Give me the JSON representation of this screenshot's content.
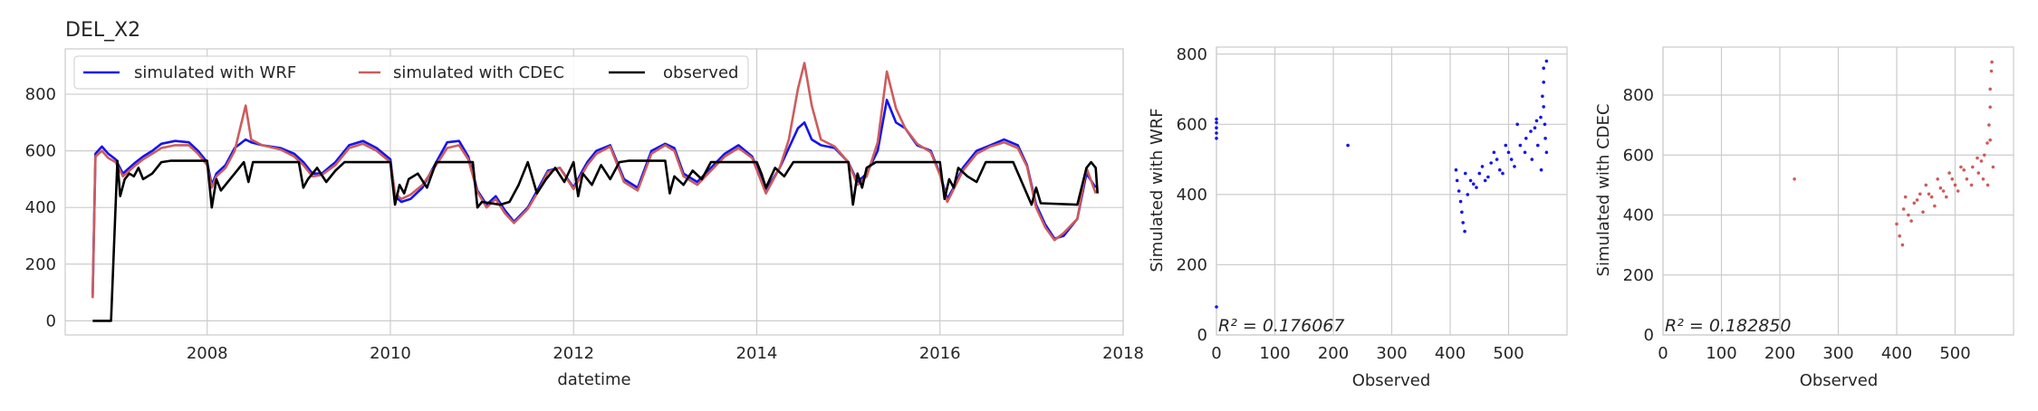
{
  "colors": {
    "wrf": "#1414f0",
    "cdec": "#cd5c5c",
    "observed": "#000000",
    "grid": "#cccccc",
    "spine": "#cccccc"
  },
  "panels": {
    "timeseries": {
      "title": "DEL_X2",
      "xlabel": "datetime",
      "ylabel": ""
    },
    "scatter_wrf": {
      "xlabel": "Observed",
      "ylabel": "Simulated with WRF",
      "r2_text": "R² = 0.176067"
    },
    "scatter_cdec": {
      "xlabel": "Observed",
      "ylabel": "Simulated with CDEC",
      "r2_text": "R² = 0.182850"
    }
  },
  "legend": [
    "simulated with WRF",
    "simulated with CDEC",
    "observed"
  ],
  "chart_data": [
    {
      "type": "line",
      "title": "DEL_X2",
      "xlabel": "datetime",
      "ylabel": "",
      "xlim": [
        2006.45,
        2018.0
      ],
      "ylim": [
        -50,
        960
      ],
      "xticks": [
        2008,
        2010,
        2012,
        2014,
        2016,
        2018
      ],
      "yticks": [
        0,
        200,
        400,
        600,
        800
      ],
      "grid": true,
      "legend_position": "top-left",
      "series": [
        {
          "name": "simulated with WRF",
          "color": "#1414f0",
          "x": [
            2006.75,
            2006.78,
            2006.85,
            2006.92,
            2007.0,
            2007.08,
            2007.15,
            2007.22,
            2007.3,
            2007.4,
            2007.5,
            2007.65,
            2007.8,
            2007.9,
            2008.0,
            2008.05,
            2008.1,
            2008.2,
            2008.3,
            2008.42,
            2008.48,
            2008.6,
            2008.8,
            2008.95,
            2009.05,
            2009.15,
            2009.25,
            2009.4,
            2009.55,
            2009.7,
            2009.85,
            2010.0,
            2010.05,
            2010.12,
            2010.22,
            2010.35,
            2010.5,
            2010.62,
            2010.75,
            2010.85,
            2010.95,
            2011.05,
            2011.15,
            2011.25,
            2011.35,
            2011.5,
            2011.62,
            2011.72,
            2011.85,
            2012.0,
            2012.08,
            2012.15,
            2012.25,
            2012.4,
            2012.55,
            2012.7,
            2012.85,
            2013.0,
            2013.1,
            2013.2,
            2013.35,
            2013.5,
            2013.65,
            2013.8,
            2013.95,
            2014.1,
            2014.25,
            2014.35,
            2014.45,
            2014.52,
            2014.6,
            2014.7,
            2014.85,
            2015.0,
            2015.1,
            2015.2,
            2015.32,
            2015.42,
            2015.52,
            2015.62,
            2015.75,
            2015.9,
            2016.0,
            2016.08,
            2016.15,
            2016.25,
            2016.4,
            2016.55,
            2016.7,
            2016.85,
            2016.95,
            2017.05,
            2017.15,
            2017.25,
            2017.35,
            2017.5,
            2017.6,
            2017.7
          ],
          "y": [
            90,
            590,
            615,
            590,
            570,
            520,
            540,
            560,
            580,
            600,
            625,
            635,
            630,
            600,
            560,
            480,
            520,
            550,
            610,
            640,
            630,
            620,
            610,
            590,
            560,
            520,
            520,
            560,
            620,
            635,
            610,
            570,
            440,
            420,
            430,
            470,
            560,
            630,
            635,
            580,
            460,
            410,
            440,
            390,
            350,
            400,
            470,
            530,
            540,
            470,
            520,
            560,
            600,
            620,
            500,
            470,
            600,
            625,
            610,
            520,
            490,
            540,
            590,
            620,
            580,
            460,
            540,
            610,
            680,
            700,
            640,
            620,
            610,
            560,
            490,
            520,
            600,
            780,
            700,
            680,
            620,
            600,
            520,
            430,
            470,
            540,
            600,
            620,
            640,
            620,
            550,
            410,
            340,
            290,
            300,
            360,
            520,
            470
          ]
        },
        {
          "name": "simulated with CDEC",
          "color": "#cd5c5c",
          "x": [
            2006.75,
            2006.78,
            2006.85,
            2006.92,
            2007.0,
            2007.08,
            2007.15,
            2007.22,
            2007.3,
            2007.4,
            2007.5,
            2007.65,
            2007.8,
            2007.9,
            2008.0,
            2008.05,
            2008.1,
            2008.2,
            2008.3,
            2008.42,
            2008.48,
            2008.6,
            2008.8,
            2008.95,
            2009.05,
            2009.15,
            2009.25,
            2009.4,
            2009.55,
            2009.7,
            2009.85,
            2010.0,
            2010.05,
            2010.12,
            2010.22,
            2010.35,
            2010.5,
            2010.62,
            2010.75,
            2010.85,
            2010.95,
            2011.05,
            2011.15,
            2011.25,
            2011.35,
            2011.5,
            2011.62,
            2011.72,
            2011.85,
            2012.0,
            2012.08,
            2012.15,
            2012.25,
            2012.4,
            2012.55,
            2012.7,
            2012.85,
            2013.0,
            2013.1,
            2013.2,
            2013.35,
            2013.5,
            2013.65,
            2013.8,
            2013.95,
            2014.1,
            2014.25,
            2014.35,
            2014.45,
            2014.52,
            2014.6,
            2014.7,
            2014.85,
            2015.0,
            2015.1,
            2015.2,
            2015.32,
            2015.42,
            2015.52,
            2015.62,
            2015.75,
            2015.9,
            2016.0,
            2016.08,
            2016.15,
            2016.25,
            2016.4,
            2016.55,
            2016.7,
            2016.85,
            2016.95,
            2017.05,
            2017.15,
            2017.25,
            2017.35,
            2017.5,
            2017.6,
            2017.7
          ],
          "y": [
            80,
            580,
            600,
            575,
            560,
            510,
            530,
            550,
            570,
            590,
            610,
            620,
            620,
            590,
            550,
            470,
            510,
            540,
            600,
            760,
            640,
            620,
            605,
            580,
            550,
            510,
            515,
            550,
            610,
            625,
            600,
            560,
            450,
            430,
            445,
            480,
            550,
            610,
            620,
            570,
            455,
            400,
            430,
            380,
            345,
            395,
            460,
            525,
            540,
            465,
            510,
            550,
            590,
            615,
            490,
            460,
            590,
            620,
            600,
            510,
            480,
            530,
            580,
            610,
            575,
            450,
            540,
            640,
            820,
            910,
            760,
            640,
            615,
            560,
            480,
            510,
            630,
            880,
            750,
            680,
            625,
            595,
            515,
            420,
            465,
            530,
            590,
            615,
            630,
            610,
            545,
            400,
            330,
            285,
            310,
            360,
            540,
            450
          ]
        },
        {
          "name": "observed",
          "color": "#000000",
          "x": [
            2006.75,
            2006.95,
            2007.02,
            2007.05,
            2007.1,
            2007.15,
            2007.2,
            2007.25,
            2007.3,
            2007.4,
            2007.5,
            2007.6,
            2008.0,
            2008.05,
            2008.1,
            2008.15,
            2008.3,
            2008.4,
            2008.45,
            2008.5,
            2009.0,
            2009.05,
            2009.1,
            2009.2,
            2009.3,
            2009.4,
            2009.5,
            2010.0,
            2010.05,
            2010.1,
            2010.15,
            2010.2,
            2010.3,
            2010.4,
            2010.5,
            2010.9,
            2010.95,
            2011.0,
            2011.2,
            2011.3,
            2011.4,
            2011.5,
            2011.6,
            2011.7,
            2011.8,
            2011.9,
            2012.0,
            2012.05,
            2012.1,
            2012.2,
            2012.3,
            2012.4,
            2012.5,
            2012.6,
            2013.0,
            2013.05,
            2013.1,
            2013.2,
            2013.3,
            2013.4,
            2013.5,
            2014.0,
            2014.05,
            2014.1,
            2014.2,
            2014.3,
            2014.4,
            2015.0,
            2015.05,
            2015.1,
            2015.15,
            2015.2,
            2015.3,
            2016.0,
            2016.05,
            2016.1,
            2016.15,
            2016.2,
            2016.3,
            2016.4,
            2016.5,
            2016.8,
            2017.0,
            2017.05,
            2017.1,
            2017.5,
            2017.6,
            2017.65,
            2017.7,
            2017.72
          ],
          "y": [
            0,
            0,
            565,
            440,
            500,
            520,
            510,
            540,
            500,
            520,
            560,
            565,
            565,
            400,
            500,
            460,
            520,
            560,
            490,
            560,
            560,
            470,
            500,
            540,
            490,
            530,
            560,
            560,
            410,
            480,
            450,
            500,
            520,
            470,
            560,
            560,
            400,
            420,
            410,
            420,
            480,
            560,
            450,
            500,
            540,
            490,
            560,
            440,
            520,
            480,
            550,
            500,
            560,
            565,
            565,
            450,
            510,
            480,
            530,
            500,
            560,
            560,
            520,
            470,
            540,
            510,
            560,
            560,
            410,
            520,
            470,
            540,
            560,
            560,
            430,
            500,
            470,
            540,
            510,
            490,
            560,
            560,
            410,
            470,
            415,
            410,
            540,
            560,
            540,
            450
          ]
        }
      ]
    },
    {
      "type": "scatter",
      "xlabel": "Observed",
      "ylabel": "Simulated with WRF",
      "xlim": [
        0,
        600
      ],
      "ylim": [
        0,
        820
      ],
      "xticks": [
        0,
        100,
        200,
        300,
        400,
        500
      ],
      "yticks": [
        0,
        200,
        400,
        600,
        800
      ],
      "annotation": "R² = 0.176067",
      "color": "#1414f0",
      "points": [
        [
          0,
          590
        ],
        [
          0,
          605
        ],
        [
          0,
          575
        ],
        [
          0,
          615
        ],
        [
          0,
          560
        ],
        [
          0,
          80
        ],
        [
          225,
          540
        ],
        [
          410,
          470
        ],
        [
          412,
          440
        ],
        [
          415,
          410
        ],
        [
          418,
          380
        ],
        [
          420,
          350
        ],
        [
          422,
          320
        ],
        [
          425,
          295
        ],
        [
          430,
          400
        ],
        [
          440,
          430
        ],
        [
          450,
          460
        ],
        [
          460,
          440
        ],
        [
          470,
          490
        ],
        [
          480,
          500
        ],
        [
          490,
          460
        ],
        [
          500,
          520
        ],
        [
          510,
          480
        ],
        [
          520,
          540
        ],
        [
          530,
          560
        ],
        [
          540,
          500
        ],
        [
          545,
          590
        ],
        [
          550,
          540
        ],
        [
          555,
          620
        ],
        [
          558,
          680
        ],
        [
          560,
          760
        ],
        [
          560,
          720
        ],
        [
          560,
          650
        ],
        [
          562,
          600
        ],
        [
          563,
          560
        ],
        [
          565,
          780
        ],
        [
          565,
          520
        ],
        [
          556,
          470
        ],
        [
          548,
          610
        ],
        [
          538,
          580
        ],
        [
          528,
          520
        ],
        [
          515,
          600
        ],
        [
          505,
          500
        ],
        [
          495,
          540
        ],
        [
          485,
          470
        ],
        [
          475,
          520
        ],
        [
          465,
          450
        ],
        [
          455,
          480
        ],
        [
          445,
          420
        ],
        [
          435,
          440
        ],
        [
          426,
          460
        ]
      ]
    },
    {
      "type": "scatter",
      "xlabel": "Observed",
      "ylabel": "Simulated with CDEC",
      "xlim": [
        0,
        600
      ],
      "ylim": [
        0,
        960
      ],
      "xticks": [
        0,
        100,
        200,
        300,
        400,
        500
      ],
      "yticks": [
        0,
        200,
        400,
        600,
        800
      ],
      "annotation": "R² = 0.182850",
      "color": "#cd5c5c",
      "points": [
        [
          225,
          520
        ],
        [
          400,
          370
        ],
        [
          405,
          330
        ],
        [
          410,
          300
        ],
        [
          412,
          420
        ],
        [
          415,
          460
        ],
        [
          420,
          400
        ],
        [
          430,
          440
        ],
        [
          440,
          470
        ],
        [
          450,
          500
        ],
        [
          460,
          460
        ],
        [
          470,
          520
        ],
        [
          480,
          480
        ],
        [
          490,
          540
        ],
        [
          500,
          500
        ],
        [
          510,
          560
        ],
        [
          520,
          520
        ],
        [
          530,
          560
        ],
        [
          540,
          540
        ],
        [
          545,
          580
        ],
        [
          550,
          600
        ],
        [
          555,
          640
        ],
        [
          558,
          700
        ],
        [
          560,
          760
        ],
        [
          560,
          820
        ],
        [
          562,
          880
        ],
        [
          563,
          910
        ],
        [
          560,
          650
        ],
        [
          565,
          560
        ],
        [
          556,
          500
        ],
        [
          548,
          520
        ],
        [
          538,
          590
        ],
        [
          528,
          500
        ],
        [
          515,
          550
        ],
        [
          505,
          480
        ],
        [
          495,
          520
        ],
        [
          485,
          460
        ],
        [
          475,
          490
        ],
        [
          465,
          430
        ],
        [
          455,
          470
        ],
        [
          445,
          410
        ],
        [
          435,
          450
        ],
        [
          425,
          380
        ]
      ]
    }
  ]
}
